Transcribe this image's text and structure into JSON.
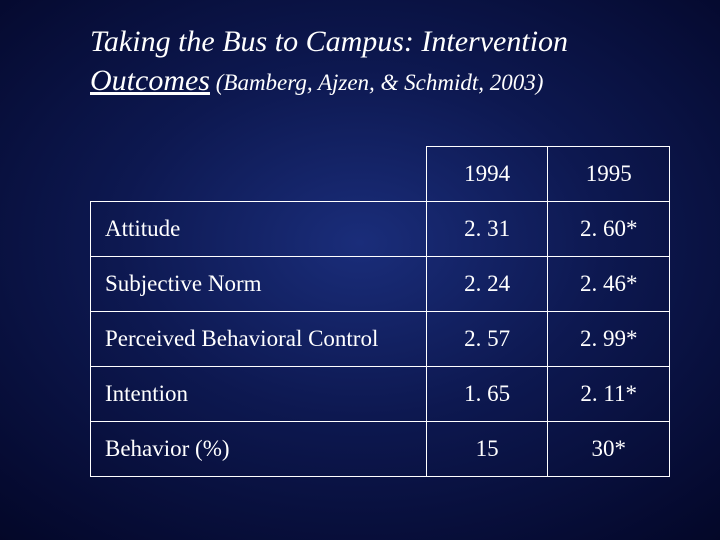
{
  "title": {
    "line1": "Taking the Bus to Campus: Intervention",
    "line2_underlined": "Outcomes",
    "citation": " (Bamberg, Ajzen, & Schmidt, 2003)"
  },
  "table": {
    "type": "table",
    "columns": [
      "",
      "1994",
      "1995"
    ],
    "rows": [
      [
        "Attitude",
        "2. 31",
        "2. 60*"
      ],
      [
        "Subjective Norm",
        "2. 24",
        "2. 46*"
      ],
      [
        "Perceived Behavioral Control",
        "2. 57",
        "2. 99*"
      ],
      [
        "Intention",
        "1. 65",
        "2. 11*"
      ],
      [
        "Behavior (%)",
        "15",
        "30*"
      ]
    ],
    "border_color": "#ffffff",
    "text_color": "#ffffff",
    "header_fontsize": 23,
    "cell_fontsize": 23,
    "label_align": "left",
    "value_align": "center",
    "col_widths_pct": [
      58,
      21,
      21
    ]
  },
  "background": {
    "gradient_center": "#1a2d7a",
    "gradient_mid": "#0d1850",
    "gradient_outer": "#000014"
  }
}
